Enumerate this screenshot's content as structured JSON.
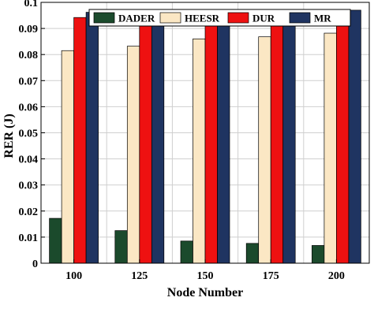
{
  "chart_data": {
    "type": "bar",
    "title": "",
    "xlabel": "Node Number",
    "ylabel": "RER (J)",
    "categories": [
      "100",
      "125",
      "150",
      "175",
      "200"
    ],
    "ylim": [
      0,
      0.1
    ],
    "yticks": [
      "0",
      "0.01",
      "0.02",
      "0.03",
      "0.04",
      "0.05",
      "0.06",
      "0.07",
      "0.08",
      "0.09",
      "0.1"
    ],
    "grid": true,
    "legend_position": "top",
    "series": [
      {
        "name": "DADER",
        "color": "#1b4a2c",
        "values": [
          0.0172,
          0.0125,
          0.0085,
          0.0076,
          0.0068
        ]
      },
      {
        "name": "HEESR",
        "color": "#fbe7c4",
        "values": [
          0.0815,
          0.0832,
          0.086,
          0.0868,
          0.0882
        ]
      },
      {
        "name": "DUR",
        "color": "#ee1111",
        "values": [
          0.0942,
          0.0942,
          0.0945,
          0.0945,
          0.0945
        ]
      },
      {
        "name": "MR",
        "color": "#1f3461",
        "values": [
          0.0962,
          0.0966,
          0.097,
          0.097,
          0.097
        ]
      }
    ]
  }
}
